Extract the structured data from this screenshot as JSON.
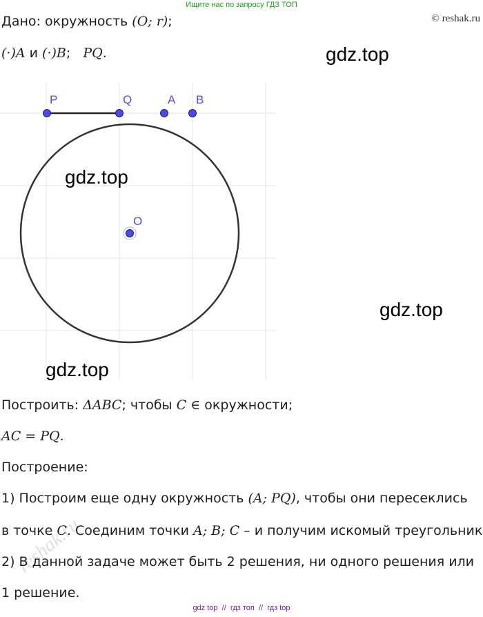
{
  "banner": "Ищите нас по запросу ГДЗ ТОП",
  "copyright": "© reshak.ru",
  "given": {
    "line1_prefix": "Дано: окружность ",
    "line1_math": "(O; r)",
    "line1_suffix": ";",
    "line2_math1": "(·)A",
    "line2_and": " и ",
    "line2_math2": "(·)B",
    "line2_sep": ";   ",
    "line2_math3": "PQ",
    "line2_end": "."
  },
  "figure": {
    "points": {
      "P": "P",
      "Q": "Q",
      "A": "A",
      "B": "B",
      "O": "O"
    },
    "colors": {
      "point_fill": "#4b4bdc",
      "point_stroke": "#1a1a8c",
      "label": "#5050d0",
      "line": "#333333",
      "grid": "#e6e6e6"
    }
  },
  "watermarks": [
    "gdz.top",
    "gdz.top",
    "gdz.top",
    "gdz.top"
  ],
  "task": {
    "build_prefix": "Построить: ",
    "build_math1": "ΔABC",
    "build_mid": "; чтобы ",
    "build_math2": "C ∈",
    "build_suffix": " окружности;",
    "cond_math": "AC = PQ",
    "cond_end": "."
  },
  "construction": {
    "heading": "Построение:",
    "step1_a": "1) Построим еще одну окружность ",
    "step1_math": "(A; PQ)",
    "step1_b": ", чтобы они пересеклись",
    "step1_c_prefix": "в точке ",
    "step1_c_math": "C",
    "step1_c_mid": ". Соединим точки ",
    "step1_c_math2": "A; B; C",
    "step1_c_end": " – и получим искомый треугольник.",
    "step2_a": "2) В данной задаче может быть 2 решения, ни одного решения или",
    "step2_b": "1 решение."
  },
  "side_watermark": "reshak.ru",
  "footer": "gdz top  //  гдз топ  //  гдз top"
}
